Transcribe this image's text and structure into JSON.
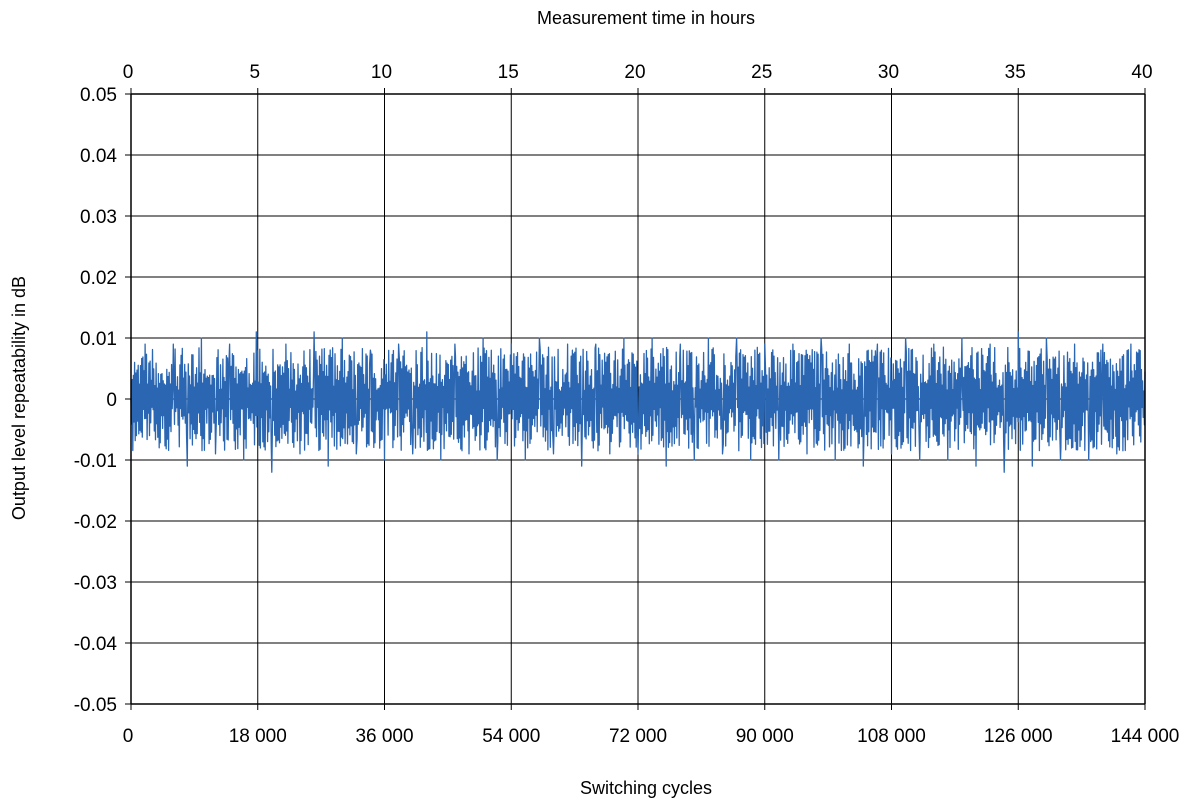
{
  "chart_data": {
    "type": "line",
    "title": "",
    "top_axis": {
      "label": "Measurement time in hours",
      "ticks": [
        "0",
        "5",
        "10",
        "15",
        "20",
        "25",
        "30",
        "35",
        "40"
      ],
      "range": [
        0,
        40
      ]
    },
    "xlabel": "Switching cycles",
    "ylabel": "Output level repeatability  in dB",
    "xlim": [
      0,
      144000
    ],
    "ylim": [
      -0.05,
      0.05
    ],
    "x_ticks": [
      "0",
      "18 000",
      "36 000",
      "54 000",
      "72 000",
      "90 000",
      "108 000",
      "126 000",
      "144 000"
    ],
    "y_ticks": [
      "0.05",
      "0.04",
      "0.03",
      "0.02",
      "0.01",
      "0",
      "-0.01",
      "-0.02",
      "-0.03",
      "-0.04",
      "-0.05"
    ],
    "grid": true,
    "legend": "none",
    "series": [
      {
        "color": "#2a66b2",
        "noise_amplitude": 0.0085,
        "peak_max": 0.011,
        "peak_min": -0.012,
        "x": [
          0,
          2000,
          4000,
          6000,
          8000,
          10000,
          12000,
          14000,
          16000,
          17800,
          20000,
          22000,
          24000,
          26000,
          28000,
          30000,
          32000,
          34000,
          36000,
          38000,
          40000,
          42000,
          44000,
          46000,
          48000,
          50000,
          52000,
          54000,
          56000,
          58000,
          60000,
          62000,
          64000,
          66000,
          68000,
          70000,
          72000,
          74000,
          76000,
          78000,
          80000,
          82000,
          84000,
          86000,
          88000,
          90000,
          92000,
          94000,
          96000,
          98000,
          100000,
          102000,
          104000,
          106000,
          108000,
          110000,
          112000,
          114000,
          116000,
          118000,
          120000,
          122000,
          124000,
          126000,
          128000,
          130000,
          132000,
          134000,
          136000,
          138000,
          140000,
          142000,
          144000
        ],
        "y": [
          0.0,
          0.009,
          -0.008,
          0.009,
          -0.011,
          0.01,
          -0.009,
          0.009,
          -0.01,
          0.011,
          -0.012,
          0.009,
          -0.009,
          0.011,
          -0.011,
          0.01,
          -0.009,
          0.008,
          -0.01,
          0.009,
          -0.009,
          0.011,
          -0.01,
          0.009,
          -0.009,
          0.01,
          -0.01,
          0.009,
          -0.01,
          0.01,
          -0.009,
          0.009,
          -0.011,
          0.009,
          -0.009,
          0.01,
          -0.009,
          0.01,
          -0.011,
          0.009,
          -0.01,
          0.01,
          -0.009,
          0.01,
          -0.01,
          0.009,
          -0.01,
          0.009,
          -0.009,
          0.01,
          -0.01,
          0.009,
          -0.011,
          0.009,
          -0.009,
          0.01,
          -0.01,
          0.009,
          -0.01,
          0.01,
          -0.011,
          0.009,
          -0.012,
          0.011,
          -0.011,
          0.01,
          -0.01,
          0.009,
          -0.01,
          0.009,
          -0.009,
          0.009,
          0.0
        ]
      }
    ]
  }
}
